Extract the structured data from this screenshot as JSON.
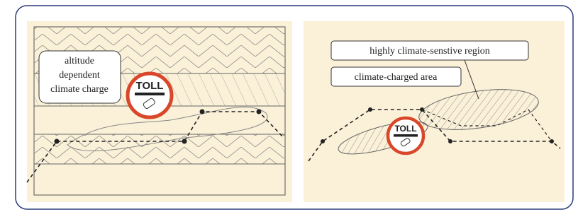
{
  "left_panel": {
    "label_lines": [
      "altitude",
      "dependent",
      "climate charge"
    ],
    "toll": "TOLL"
  },
  "right_panel": {
    "region_label": "highly climate-senstive region",
    "area_label": "climate-charged area",
    "toll": "TOLL"
  }
}
